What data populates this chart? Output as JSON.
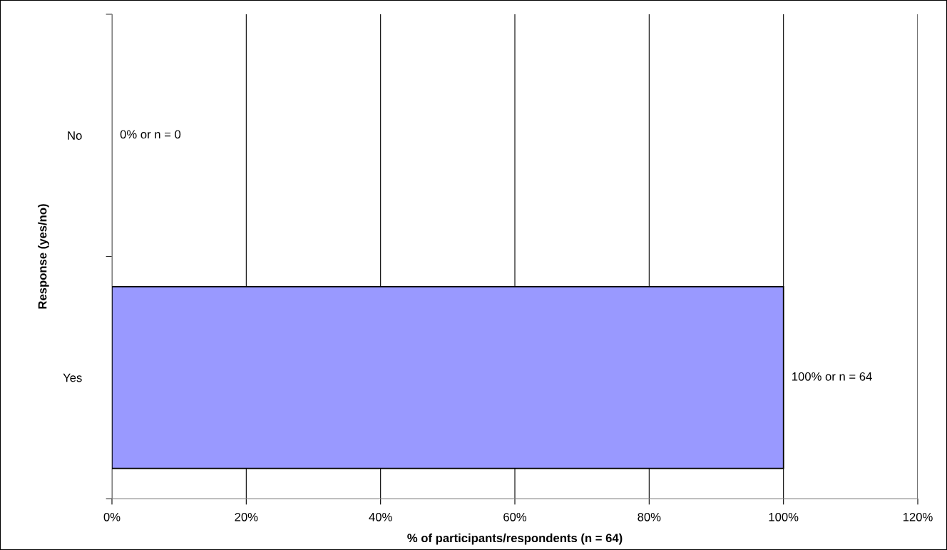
{
  "chart_data": {
    "type": "bar",
    "orientation": "horizontal",
    "xlabel": "% of participants/respondents (n = 64)",
    "ylabel": "Response (yes/no)",
    "categories": [
      "No",
      "Yes"
    ],
    "series": [
      {
        "color": "#9999ff",
        "values": [
          0,
          100
        ],
        "value_labels": [
          "0% or n = 0",
          "100% or n = 64"
        ]
      }
    ],
    "xlim": [
      0,
      120
    ],
    "xticks": [
      {
        "value": 0,
        "label": "0%"
      },
      {
        "value": 20,
        "label": "20%"
      },
      {
        "value": 40,
        "label": "40%"
      },
      {
        "value": 60,
        "label": "60%"
      },
      {
        "value": 80,
        "label": "80%"
      },
      {
        "value": 100,
        "label": "100%"
      },
      {
        "value": 120,
        "label": "120%"
      }
    ],
    "grid": "x",
    "legend": false
  }
}
